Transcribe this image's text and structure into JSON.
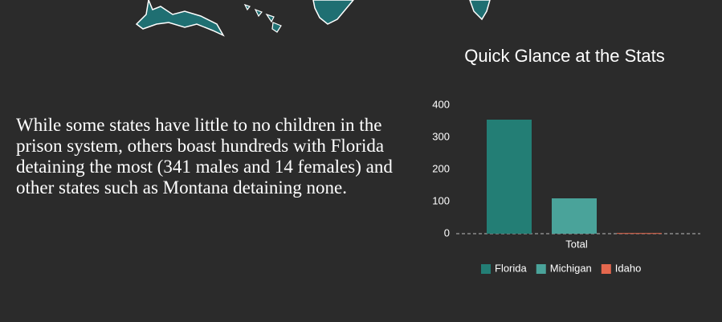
{
  "paragraph": "While some states have little to no children in the prison system, others boast hundreds with Florida detaining the most (341 males and 14 females) and other states such as Montana detaining none.",
  "chart_data": {
    "type": "bar",
    "title": "Quick Glance at the Stats",
    "categories": [
      "Total"
    ],
    "series": [
      {
        "name": "Florida",
        "color": "#237e75",
        "values": [
          355
        ]
      },
      {
        "name": "Michigan",
        "color": "#4aa39a",
        "values": [
          110
        ]
      },
      {
        "name": "Idaho",
        "color": "#e5684e",
        "values": [
          2
        ]
      }
    ],
    "ylim": [
      0,
      400
    ],
    "yticks": [
      0,
      100,
      200,
      300,
      400
    ],
    "grid": false,
    "legend": "bottom"
  }
}
